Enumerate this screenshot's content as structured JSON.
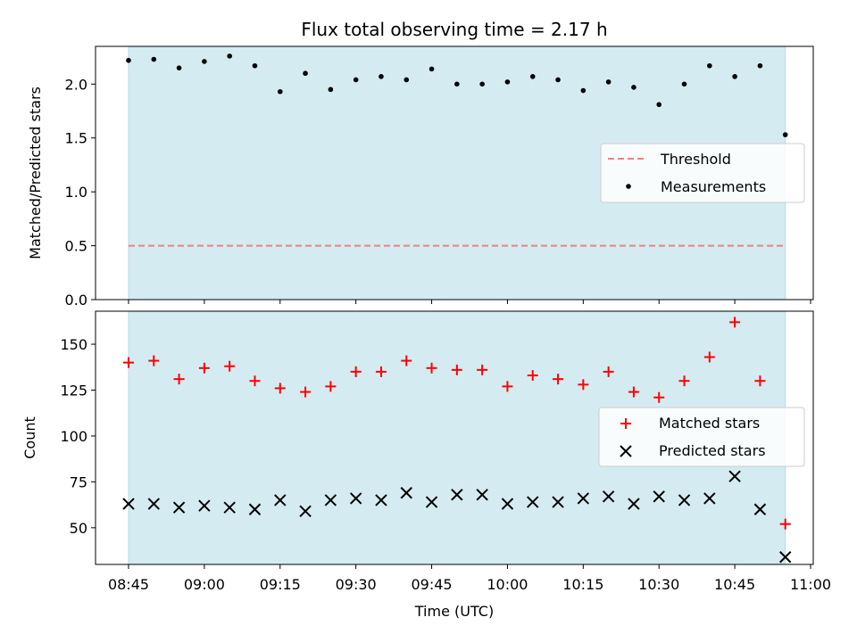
{
  "chart_data": {
    "type": "scatter",
    "title": "Flux total observing time = 2.17 h",
    "xlabel": "Time (UTC)",
    "x_ticks": [
      "08:45",
      "09:00",
      "09:15",
      "09:30",
      "09:45",
      "10:00",
      "10:15",
      "10:30",
      "10:45",
      "11:00"
    ],
    "colors": {
      "span": "#d4ebf1",
      "threshold": "#f08080",
      "measurements": "#000000",
      "matched": "#ff0000",
      "predicted": "#000000"
    },
    "times": [
      "08:45",
      "08:50",
      "08:55",
      "09:00",
      "09:05",
      "09:10",
      "09:15",
      "09:20",
      "09:25",
      "09:30",
      "09:35",
      "09:40",
      "09:45",
      "09:50",
      "09:55",
      "10:00",
      "10:05",
      "10:10",
      "10:15",
      "10:20",
      "10:25",
      "10:30",
      "10:35",
      "10:40",
      "10:45",
      "10:50",
      "10:55"
    ],
    "observing_span": [
      "08:45",
      "10:55"
    ],
    "top": {
      "ylabel": "Matched/Predicted stars",
      "ylim": [
        0,
        2.35
      ],
      "y_ticks": [
        "0.0",
        "0.5",
        "1.0",
        "1.5",
        "2.0"
      ],
      "threshold": 0.5,
      "measurements": [
        2.22,
        2.23,
        2.15,
        2.21,
        2.26,
        2.17,
        1.93,
        2.1,
        1.95,
        2.04,
        2.07,
        2.04,
        2.14,
        2.0,
        2.0,
        2.02,
        2.07,
        2.04,
        1.94,
        2.02,
        1.97,
        1.81,
        2.0,
        2.17,
        2.07,
        2.17,
        1.53
      ],
      "legend": {
        "position": "center-right",
        "threshold_label": "Threshold",
        "measurements_label": "Measurements"
      }
    },
    "bottom": {
      "ylabel": "Count",
      "ylim": [
        30,
        168
      ],
      "y_ticks": [
        "50",
        "75",
        "100",
        "125",
        "150"
      ],
      "matched": [
        140,
        141,
        131,
        137,
        138,
        130,
        126,
        124,
        127,
        135,
        135,
        141,
        137,
        136,
        136,
        127,
        133,
        131,
        128,
        135,
        124,
        121,
        130,
        143,
        162,
        130,
        52
      ],
      "predicted": [
        63,
        63,
        61,
        62,
        61,
        60,
        65,
        59,
        65,
        66,
        65,
        69,
        64,
        68,
        68,
        63,
        64,
        64,
        66,
        67,
        63,
        67,
        65,
        66,
        78,
        60,
        34
      ],
      "legend": {
        "position": "center-right",
        "matched_label": "Matched stars",
        "predicted_label": "Predicted stars"
      }
    }
  }
}
